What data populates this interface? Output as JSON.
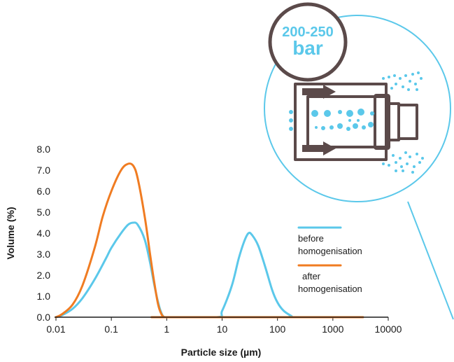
{
  "colors": {
    "before": "#5bc8ea",
    "after": "#f07c22",
    "axis": "#1a1a1a",
    "illustration": "#5b4a4a",
    "accent": "#5bc8ea"
  },
  "badge": {
    "range": "200-250",
    "unit": "bar"
  },
  "illustration": {
    "icon": "homogenizer-nozzle-icon"
  },
  "chart_data": {
    "type": "line",
    "title": "",
    "xlabel": "Particle size (µm)",
    "ylabel": "Volume (%)",
    "x_scale": "log",
    "xlim": [
      0.01,
      10000
    ],
    "ylim": [
      0,
      8
    ],
    "grid": false,
    "x_ticks": [
      0.01,
      0.1,
      1,
      10,
      100,
      1000,
      10000
    ],
    "x_tick_labels": [
      "0.01",
      "0.1",
      "1",
      "10",
      "100",
      "1000",
      "10000"
    ],
    "y_ticks": [
      0,
      1,
      2,
      3,
      4,
      5,
      6,
      7,
      8
    ],
    "y_tick_labels": [
      "0.0",
      "1.0",
      "2.0",
      "3.0",
      "4.0",
      "5.0",
      "6.0",
      "7.0",
      "8.0"
    ],
    "legend_position": "right",
    "series": [
      {
        "name": "before homogenisation",
        "legend_lines": [
          "before",
          "homogenisation"
        ],
        "color": "#5bc8ea",
        "points": [
          [
            0.01,
            0.0
          ],
          [
            0.013,
            0.1
          ],
          [
            0.02,
            0.4
          ],
          [
            0.03,
            0.9
          ],
          [
            0.05,
            1.8
          ],
          [
            0.08,
            2.8
          ],
          [
            0.1,
            3.3
          ],
          [
            0.15,
            4.0
          ],
          [
            0.2,
            4.4
          ],
          [
            0.25,
            4.5
          ],
          [
            0.3,
            4.4
          ],
          [
            0.4,
            3.7
          ],
          [
            0.5,
            2.6
          ],
          [
            0.6,
            1.5
          ],
          [
            0.7,
            0.7
          ],
          [
            0.8,
            0.2
          ],
          [
            0.9,
            0.0
          ],
          [
            1,
            0.0
          ],
          [
            8,
            0.0
          ],
          [
            10,
            0.3
          ],
          [
            15,
            1.5
          ],
          [
            20,
            2.8
          ],
          [
            25,
            3.6
          ],
          [
            30,
            4.0
          ],
          [
            35,
            3.9
          ],
          [
            45,
            3.4
          ],
          [
            60,
            2.4
          ],
          [
            80,
            1.3
          ],
          [
            100,
            0.7
          ],
          [
            130,
            0.3
          ],
          [
            180,
            0.05
          ],
          [
            200,
            0.0
          ],
          [
            3500,
            0.0
          ]
        ]
      },
      {
        "name": "after homogenisation",
        "legend_lines": [
          "after",
          "homogenisation"
        ],
        "color": "#f07c22",
        "points": [
          [
            0.01,
            0.0
          ],
          [
            0.013,
            0.15
          ],
          [
            0.02,
            0.6
          ],
          [
            0.03,
            1.5
          ],
          [
            0.05,
            3.3
          ],
          [
            0.07,
            4.8
          ],
          [
            0.1,
            6.0
          ],
          [
            0.15,
            7.0
          ],
          [
            0.2,
            7.3
          ],
          [
            0.25,
            7.2
          ],
          [
            0.3,
            6.6
          ],
          [
            0.4,
            4.8
          ],
          [
            0.5,
            3.0
          ],
          [
            0.6,
            1.6
          ],
          [
            0.7,
            0.6
          ],
          [
            0.8,
            0.15
          ],
          [
            0.9,
            0.0
          ],
          [
            1,
            0.0
          ],
          [
            3500,
            0.0
          ]
        ]
      }
    ]
  }
}
